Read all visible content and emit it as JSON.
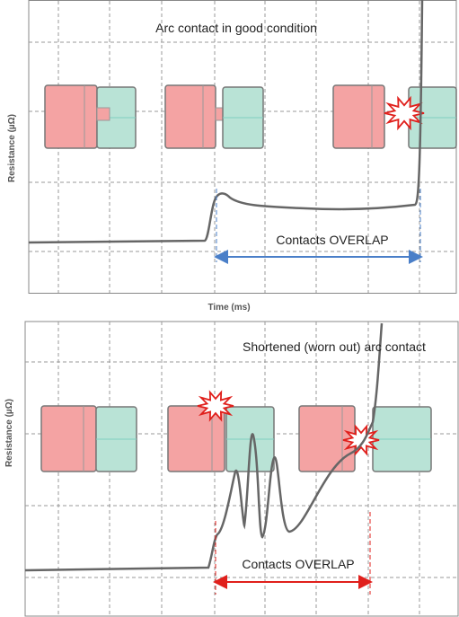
{
  "panels": [
    {
      "title": "Arc contact in good condition",
      "y_label": "Resistance (µΩ)",
      "x_label": "Time (ms)",
      "annotation": "Contacts OVERLAP"
    },
    {
      "title": "Shortened (worn out) arc contact",
      "y_label": "Resistance (µΩ)",
      "annotation": "Contacts OVERLAP"
    }
  ]
}
